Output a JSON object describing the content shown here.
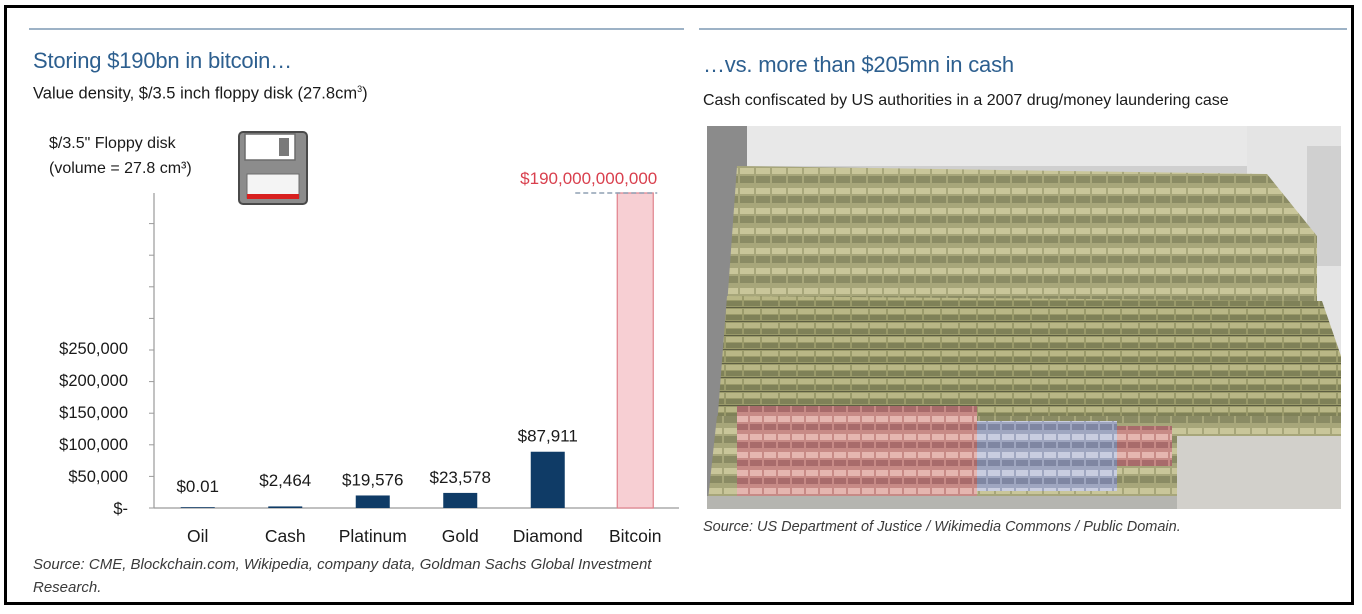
{
  "left_panel": {
    "title": "Storing $190bn in bitcoin…",
    "subtitle": "Value density, $/3.5 inch floppy disk (27.8cm",
    "subtitle_sup": "3",
    "subtitle_close": ")",
    "source": "Source: CME, Blockchain.com, Wikipedia, company data, Goldman Sachs Global Investment Research."
  },
  "right_panel": {
    "title": "…vs. more than $205mn in cash",
    "subtitle": "Cash confiscated by US authorities in a 2007 drug/money laundering case",
    "source": "Source: US Department of Justice / Wikimedia Commons / Public Domain.",
    "image_icon": "cash-pile-photo"
  },
  "chart_data": {
    "type": "bar",
    "axis_title_line1": "$/3.5\" Floppy disk",
    "axis_title_line2": "(volume = 27.8 cm³)",
    "icon": "floppy-disk-icon",
    "categories": [
      "Oil",
      "Cash",
      "Platinum",
      "Gold",
      "Diamond",
      "Bitcoin"
    ],
    "values": [
      0.01,
      2464,
      19576,
      23578,
      87911,
      190000000000
    ],
    "value_labels": [
      "$0.01",
      "$2,464",
      "$19,576",
      "$23,578",
      "$87,911",
      "$190,000,000,000"
    ],
    "ylim": [
      0,
      250000
    ],
    "yticks": [
      0,
      50000,
      100000,
      150000,
      200000,
      250000
    ],
    "ytick_labels": [
      "$-",
      "$50,000",
      "$100,000",
      "$150,000",
      "$200,000",
      "$250,000"
    ],
    "axis_break": true,
    "colors": {
      "bar": "#0f3b66",
      "highlight_fill": "#f7cfd3",
      "highlight_stroke": "#e0818b",
      "highlight_text": "#d9404e",
      "axis": "#9a9a9a"
    },
    "grid": false,
    "legend": "none"
  }
}
